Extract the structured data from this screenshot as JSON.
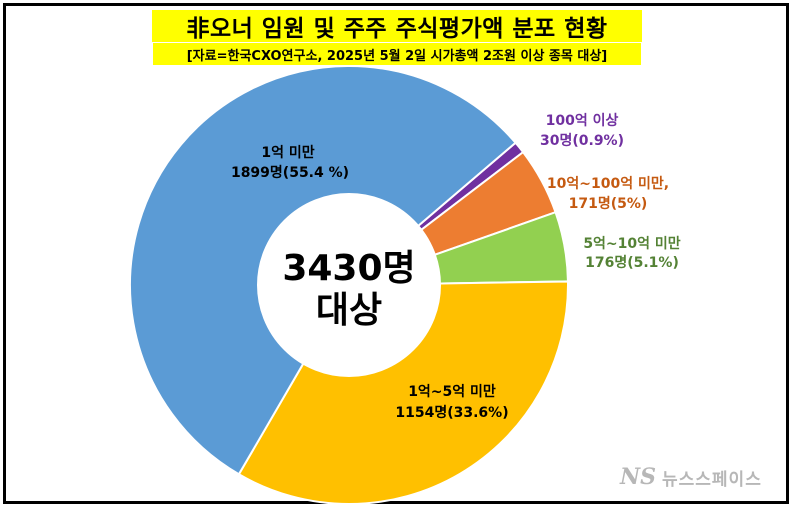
{
  "title": "非오너 임원 및 주주 주식평가액 분포 현황",
  "subtitle": "[자료=한국CXO연구소, 2025년 5월 2일 시가총액 2조원 이상 종목 대상]",
  "center_label": {
    "line1": "3430명",
    "line2": "대상"
  },
  "watermark": {
    "logo": "NS",
    "text": "뉴스스페이스"
  },
  "chart_data": {
    "type": "pie",
    "variant": "donut",
    "total": 3430,
    "slices": [
      {
        "name": "100억 이상",
        "value_label": "30명(0.9%)",
        "count": 30,
        "percent": 0.9,
        "color": "#7030a0",
        "label_color": "#7030a0"
      },
      {
        "name": "10억~100억 미만,",
        "value_label": "171명(5%)",
        "count": 171,
        "percent": 5.0,
        "color": "#ed7d31",
        "label_color": "#c55a11"
      },
      {
        "name": "5억~10억 미만",
        "value_label": "176명(5.1%)",
        "count": 176,
        "percent": 5.1,
        "color": "#92d050",
        "label_color": "#548235"
      },
      {
        "name": "1억~5억 미만",
        "value_label": "1154명(33.6%)",
        "count": 1154,
        "percent": 33.6,
        "color": "#ffc000",
        "label_color": "#000000"
      },
      {
        "name": "1억 미만",
        "value_label": "1899명(55.4 %)",
        "count": 1899,
        "percent": 55.4,
        "color": "#5b9bd5",
        "label_color": "#000000"
      }
    ]
  }
}
